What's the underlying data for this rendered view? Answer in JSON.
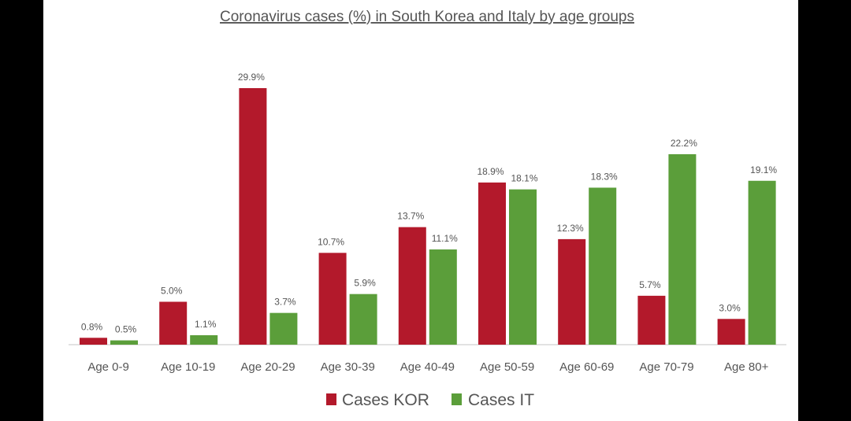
{
  "chart_data": {
    "type": "bar",
    "title": "Coronavirus cases (%) in South Korea and Italy by age groups",
    "categories": [
      "Age 0-9",
      "Age 10-19",
      "Age 20-29",
      "Age 30-39",
      "Age 40-49",
      "Age 50-59",
      "Age 60-69",
      "Age 70-79",
      "Age 80+"
    ],
    "series": [
      {
        "name": "Cases KOR",
        "color": "#b3192b",
        "values": [
          0.8,
          5.0,
          29.9,
          10.7,
          13.7,
          18.9,
          12.3,
          5.7,
          3.0
        ],
        "labels": [
          "0.8%",
          "5.0%",
          "29.9%",
          "10.7%",
          "13.7%",
          "18.9%",
          "12.3%",
          "5.7%",
          "3.0%"
        ]
      },
      {
        "name": "Cases IT",
        "color": "#5b9e3a",
        "values": [
          0.5,
          1.1,
          3.7,
          5.9,
          11.1,
          18.1,
          18.3,
          22.2,
          19.1
        ],
        "labels": [
          "0.5%",
          "1.1%",
          "3.7%",
          "5.9%",
          "11.1%",
          "18.1%",
          "18.3%",
          "22.2%",
          "19.1%"
        ]
      }
    ],
    "xlabel": "",
    "ylabel": "",
    "ylim": [
      0,
      30
    ],
    "grid": false,
    "legend_position": "bottom"
  }
}
